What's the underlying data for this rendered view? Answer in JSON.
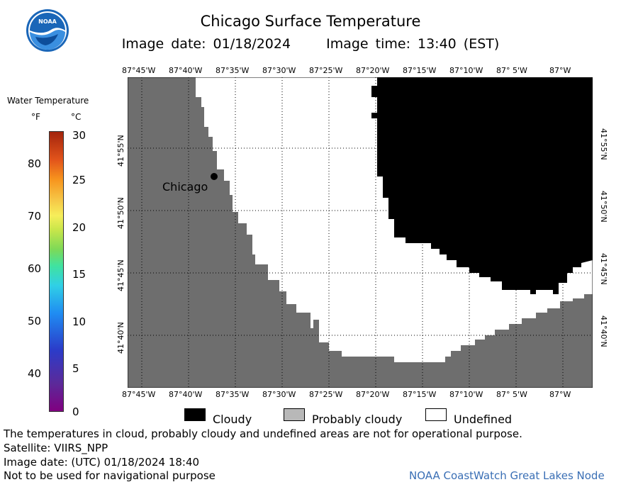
{
  "header": {
    "logo_text": "NOAA",
    "title": "Chicago Surface Temperature",
    "image_date": "Image date: 01/18/2024",
    "image_time": "Image time: 13:40 (EST)"
  },
  "map": {
    "lon_labels": [
      "87°45'W",
      "87°40'W",
      "87°35'W",
      "87°30'W",
      "87°25'W",
      "87°20'W",
      "87°15'W",
      "87°10'W",
      "87° 5'W",
      "87°W"
    ],
    "lat_labels": [
      "41°55'N",
      "41°50'N",
      "41°45'N",
      "41°40'N"
    ],
    "city": {
      "name": "Chicago"
    },
    "colors": {
      "land": "#6e6e6e",
      "cloudy": "#000000",
      "probably_cloudy": "#b8b8b8",
      "undefined": "#ffffff",
      "grid": "#000000"
    }
  },
  "colorbar": {
    "title": "Water Temperature",
    "unit_f": "°F",
    "unit_c": "°C",
    "f_ticks": [
      "80",
      "70",
      "60",
      "50",
      "40"
    ],
    "c_ticks": [
      "30",
      "25",
      "20",
      "15",
      "10",
      "5",
      "0"
    ]
  },
  "legend": {
    "items": [
      {
        "label": "Cloudy",
        "color": "#000000"
      },
      {
        "label": "Probably cloudy",
        "color": "#b8b8b8"
      },
      {
        "label": "Undefined",
        "color": "#ffffff"
      }
    ]
  },
  "footer": {
    "disclaimer": "The temperatures in cloud, probably cloudy and undefined areas are not for operational purpose.",
    "satellite": "Satellite: VIIRS_NPP",
    "utc_date": "Image date: (UTC) 01/18/2024  18:40",
    "navigation": "Not to be used for navigational purpose",
    "credit": "NOAA CoastWatch Great Lakes Node"
  }
}
